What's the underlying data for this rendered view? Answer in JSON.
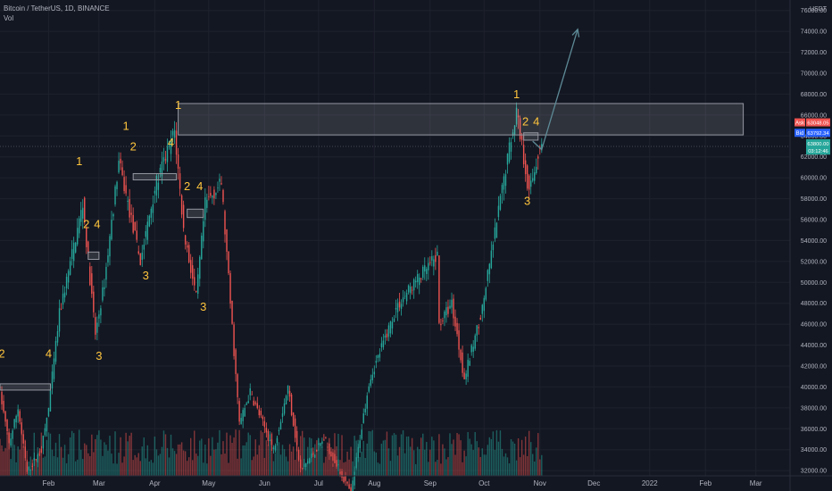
{
  "legend": {
    "symbol_line": "Bitcoin / TetherUS, 1D, BINANCE",
    "indicator": "Vol"
  },
  "colors": {
    "background": "#131722",
    "grid": "#1e222d",
    "up": "#26a69a",
    "down": "#ef5350",
    "wave_label": "#ffc53d",
    "zone_fill": "#ffffff",
    "arrow": "#5d8a96",
    "axis_text": "#b2b5be"
  },
  "chart_data": {
    "type": "candlestick",
    "title": "Bitcoin / TetherUS, 1D, BINANCE",
    "y_axis_unit": "USDT",
    "ylim": [
      31500,
      77000
    ],
    "y_ticks": [
      32000,
      34000,
      36000,
      38000,
      40000,
      42000,
      44000,
      46000,
      48000,
      50000,
      52000,
      54000,
      56000,
      58000,
      60000,
      62000,
      64000,
      66000,
      68000,
      70000,
      72000,
      74000,
      76000
    ],
    "y_tick_labels": [
      "32000.00",
      "34000.00",
      "36000.00",
      "38000.00",
      "40000.00",
      "42000.00",
      "44000.00",
      "46000.00",
      "48000.00",
      "50000.00",
      "52000.00",
      "54000.00",
      "56000.00",
      "58000.00",
      "60000.00",
      "62000.00",
      "64000.00",
      "66000.00",
      "68000.00",
      "70000.00",
      "72000.00",
      "74000.00",
      "76000.00"
    ],
    "x_range": [
      "2021-01-05",
      "2022-03-20"
    ],
    "x_ticks": [
      {
        "date": "2021-02-01",
        "label": "Feb"
      },
      {
        "date": "2021-03-01",
        "label": "Mar"
      },
      {
        "date": "2021-04-01",
        "label": "Apr"
      },
      {
        "date": "2021-05-01",
        "label": "May"
      },
      {
        "date": "2021-06-01",
        "label": "Jun"
      },
      {
        "date": "2021-07-01",
        "label": "Jul"
      },
      {
        "date": "2021-08-01",
        "label": "Aug"
      },
      {
        "date": "2021-09-01",
        "label": "Sep"
      },
      {
        "date": "2021-10-01",
        "label": "Oct"
      },
      {
        "date": "2021-11-01",
        "label": "Nov"
      },
      {
        "date": "2021-12-01",
        "label": "Dec"
      },
      {
        "date": "2022-01-01",
        "label": "2022"
      },
      {
        "date": "2022-02-01",
        "label": "Feb"
      },
      {
        "date": "2022-03-01",
        "label": "Mar"
      }
    ],
    "price_keypoints": [
      {
        "date": "2021-01-05",
        "price": 40500
      },
      {
        "date": "2021-01-11",
        "price": 34500
      },
      {
        "date": "2021-01-16",
        "price": 38000
      },
      {
        "date": "2021-01-21",
        "price": 31800
      },
      {
        "date": "2021-01-29",
        "price": 34000
      },
      {
        "date": "2021-02-02",
        "price": 38000
      },
      {
        "date": "2021-02-08",
        "price": 47000
      },
      {
        "date": "2021-02-21",
        "price": 57500
      },
      {
        "date": "2021-02-28",
        "price": 45000
      },
      {
        "date": "2021-03-05",
        "price": 50000
      },
      {
        "date": "2021-03-13",
        "price": 61500
      },
      {
        "date": "2021-03-25",
        "price": 52000
      },
      {
        "date": "2021-04-02",
        "price": 59000
      },
      {
        "date": "2021-04-13",
        "price": 64500
      },
      {
        "date": "2021-04-18",
        "price": 55000
      },
      {
        "date": "2021-04-25",
        "price": 48500
      },
      {
        "date": "2021-04-30",
        "price": 57500
      },
      {
        "date": "2021-05-09",
        "price": 59500
      },
      {
        "date": "2021-05-19",
        "price": 36500
      },
      {
        "date": "2021-05-25",
        "price": 39500
      },
      {
        "date": "2021-06-07",
        "price": 34000
      },
      {
        "date": "2021-06-15",
        "price": 40000
      },
      {
        "date": "2021-06-22",
        "price": 32000
      },
      {
        "date": "2021-07-05",
        "price": 35000
      },
      {
        "date": "2021-07-20",
        "price": 29800
      },
      {
        "date": "2021-07-30",
        "price": 40500
      },
      {
        "date": "2021-08-14",
        "price": 47500
      },
      {
        "date": "2021-08-22",
        "price": 49500
      },
      {
        "date": "2021-09-06",
        "price": 52500
      },
      {
        "date": "2021-09-07",
        "price": 46000
      },
      {
        "date": "2021-09-14",
        "price": 48000
      },
      {
        "date": "2021-09-21",
        "price": 40800
      },
      {
        "date": "2021-10-01",
        "price": 47500
      },
      {
        "date": "2021-10-15",
        "price": 62000
      },
      {
        "date": "2021-10-20",
        "price": 66500
      },
      {
        "date": "2021-10-27",
        "price": 58500
      },
      {
        "date": "2021-11-02",
        "price": 63000
      }
    ],
    "volume_area": {
      "ylim": [
        0,
        1
      ],
      "top_fraction": 0.13
    },
    "wave_labels": [
      {
        "text": "2",
        "date": "2021-01-06",
        "price": 42800
      },
      {
        "text": "4",
        "date": "2021-02-01",
        "price": 42800
      },
      {
        "text": "1",
        "date": "2021-02-18",
        "price": 61200
      },
      {
        "text": "2",
        "date": "2021-02-22",
        "price": 55200
      },
      {
        "text": "4",
        "date": "2021-02-28",
        "price": 55200
      },
      {
        "text": "3",
        "date": "2021-03-01",
        "price": 42600
      },
      {
        "text": "1",
        "date": "2021-03-16",
        "price": 64600
      },
      {
        "text": "2",
        "date": "2021-03-20",
        "price": 62600
      },
      {
        "text": "3",
        "date": "2021-03-27",
        "price": 50300
      },
      {
        "text": "4",
        "date": "2021-04-10",
        "price": 63000
      },
      {
        "text": "1",
        "date": "2021-04-14",
        "price": 66600
      },
      {
        "text": "2",
        "date": "2021-04-19",
        "price": 58800
      },
      {
        "text": "4",
        "date": "2021-04-26",
        "price": 58800
      },
      {
        "text": "3",
        "date": "2021-04-28",
        "price": 47300
      },
      {
        "text": "1",
        "date": "2021-10-19",
        "price": 67600
      },
      {
        "text": "2",
        "date": "2021-10-24",
        "price": 65000
      },
      {
        "text": "4",
        "date": "2021-10-30",
        "price": 65000
      },
      {
        "text": "3",
        "date": "2021-10-25",
        "price": 57400
      }
    ],
    "zones": [
      {
        "start": "2021-01-05",
        "end": "2021-02-02",
        "top": 40300,
        "bottom": 39700
      },
      {
        "start": "2021-02-23",
        "end": "2021-03-01",
        "top": 52900,
        "bottom": 52200
      },
      {
        "start": "2021-03-20",
        "end": "2021-04-13",
        "top": 60400,
        "bottom": 59800
      },
      {
        "start": "2021-04-19",
        "end": "2021-04-28",
        "top": 57000,
        "bottom": 56200
      },
      {
        "start": "2021-04-14",
        "end": "2022-02-22",
        "top": 67100,
        "bottom": 64100
      },
      {
        "start": "2021-10-23",
        "end": "2021-10-31",
        "top": 64300,
        "bottom": 63600
      }
    ],
    "horizontal_line": {
      "price": 63000
    },
    "arrow_path": [
      {
        "date": "2021-10-28",
        "price": 63500
      },
      {
        "date": "2021-11-02",
        "price": 62700
      },
      {
        "date": "2021-11-22",
        "price": 74200
      }
    ],
    "price_badges": [
      {
        "label": "Ask",
        "value": "63048.05",
        "price": 65300,
        "color": "#ef5350"
      },
      {
        "label": "Bid",
        "value": "63792.34",
        "price": 64300,
        "color": "#2962ff"
      },
      {
        "label": "",
        "value": "63800.00",
        "price": 63300,
        "color": "#26a69a"
      },
      {
        "label": "",
        "value": "03:12:46",
        "price": 62600,
        "color": "#26a69a"
      }
    ]
  }
}
